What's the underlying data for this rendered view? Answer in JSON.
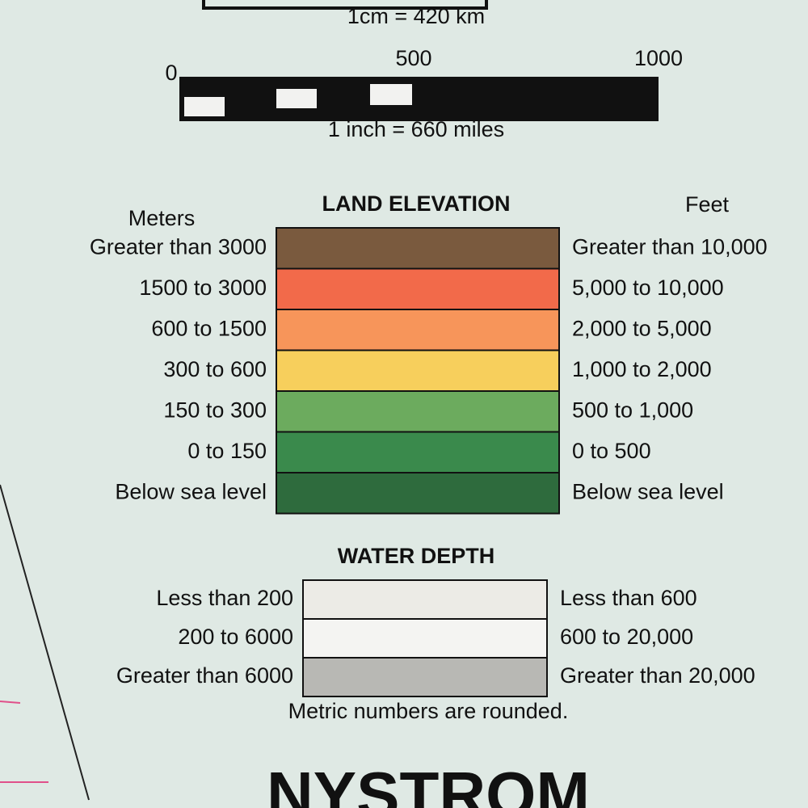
{
  "scale": {
    "metric": "1cm = 420 km",
    "ticks": [
      "0",
      "500",
      "1000"
    ],
    "imperial": "1 inch = 660 miles"
  },
  "land_elevation": {
    "title": "LAND ELEVATION",
    "left_header": "Meters",
    "right_header": "Feet",
    "rows": [
      {
        "meters": "Greater than 3000",
        "feet": "Greater than 10,000",
        "color": "#7a5a3e"
      },
      {
        "meters": "1500 to 3000",
        "feet": "5,000 to 10,000",
        "color": "#f26a4a"
      },
      {
        "meters": "600 to 1500",
        "feet": "2,000 to 5,000",
        "color": "#f7955a"
      },
      {
        "meters": "300 to 600",
        "feet": "1,000 to 2,000",
        "color": "#f7cf5c"
      },
      {
        "meters": "150 to 300",
        "feet": "500 to 1,000",
        "color": "#6cab5e"
      },
      {
        "meters": "0 to 150",
        "feet": "0 to 500",
        "color": "#3a8a4c"
      },
      {
        "meters": "Below sea level",
        "feet": "Below sea level",
        "color": "#2e6b3d"
      }
    ]
  },
  "water_depth": {
    "title": "WATER DEPTH",
    "rows": [
      {
        "meters": "Less than 200",
        "feet": "Less than 600",
        "color": "#ecebe6"
      },
      {
        "meters": "200 to 6000",
        "feet": "600 to 20,000",
        "color": "#f4f4f2"
      },
      {
        "meters": "Greater than 6000",
        "feet": "Greater than 20,000",
        "color": "#b8b8b4"
      }
    ]
  },
  "note": "Metric numbers are rounded.",
  "brand": "NYSTROM"
}
